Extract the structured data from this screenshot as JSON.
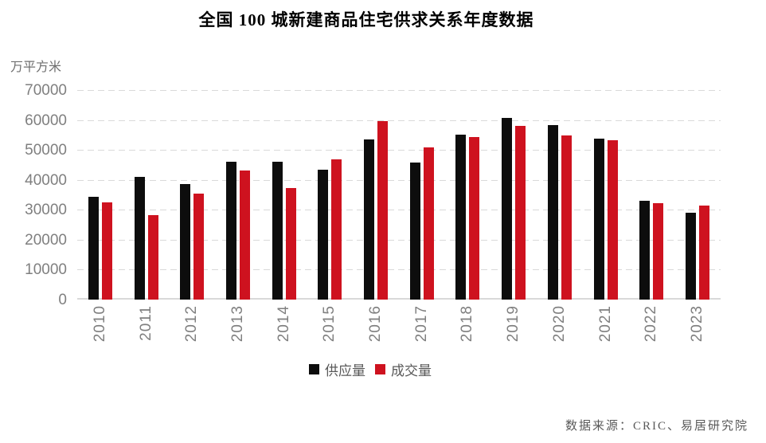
{
  "chart": {
    "title": "全国 100 城新建商品住宅供求关系年度数据",
    "unit": "万平方米",
    "source": "数据来源：CRIC、易居研究院"
  },
  "chart_data": {
    "type": "bar",
    "title": "全国 100 城新建商品住宅供求关系年度数据",
    "xlabel": "",
    "ylabel": "万平方米",
    "categories": [
      "2010",
      "2011",
      "2012",
      "2013",
      "2014",
      "2015",
      "2016",
      "2017",
      "2018",
      "2019",
      "2020",
      "2021",
      "2022",
      "2023"
    ],
    "series": [
      {
        "key": "supply",
        "name": "供应量",
        "color": "#0d0d0d",
        "values": [
          34400,
          41000,
          38600,
          46000,
          46000,
          43500,
          53400,
          45700,
          55100,
          60600,
          58200,
          53700,
          33000,
          28900
        ]
      },
      {
        "key": "deal",
        "name": "成交量",
        "color": "#ce121f",
        "values": [
          32400,
          28100,
          35500,
          43000,
          37300,
          46900,
          59700,
          50800,
          54300,
          58100,
          54700,
          53300,
          32300,
          31500
        ]
      }
    ],
    "ylim": [
      0,
      70000
    ],
    "ytick_step": 10000,
    "grid": true,
    "gridline_color": "#d9d9d9",
    "axis_text_color": "#7f7f7f",
    "legend_position": "bottom",
    "legend_text_color": "#595959"
  }
}
